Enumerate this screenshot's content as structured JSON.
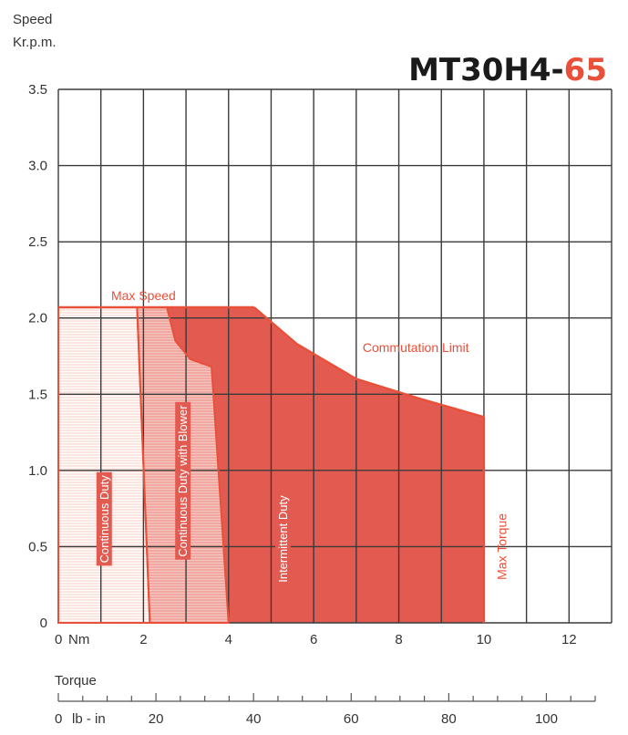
{
  "chart_data": {
    "type": "area",
    "title": {
      "model_prefix": "MT30H4-",
      "model_suffix": "65"
    },
    "ylabel": [
      "Speed",
      "Kr.p.m."
    ],
    "xlabel": "Torque",
    "x_unit_label": "Nm",
    "secondary_x_unit_label": "lb - in",
    "xlim": [
      0,
      13
    ],
    "ylim": [
      0,
      3.5
    ],
    "x_ticks": [
      0,
      2,
      4,
      6,
      8,
      10,
      12
    ],
    "y_ticks": [
      0,
      0.5,
      1.0,
      1.5,
      2.0,
      2.5,
      3.0,
      3.5
    ],
    "x_tick_labels": [
      "0",
      "2",
      "4",
      "6",
      "8",
      "10",
      "12"
    ],
    "y_tick_labels": [
      "0",
      "0.5",
      "1.0",
      "1.5",
      "2.0",
      "2.5",
      "3.0",
      "3.5"
    ],
    "secondary_x_ticks": [
      0,
      20,
      40,
      60,
      80,
      100
    ],
    "secondary_x_tick_labels": [
      "0",
      "20",
      "40",
      "60",
      "80",
      "100"
    ],
    "secondary_x_minor_step": 5,
    "secondary_x_max": 110,
    "grid": true,
    "colors": {
      "accent": "#e8503a",
      "continuous": "#e35a50",
      "blower": "#f0a8a0",
      "intermittent": "#fbe6e2",
      "grid": "#3a3a3a"
    },
    "regions": [
      {
        "name": "Continuous Duty",
        "points": [
          [
            0,
            0
          ],
          [
            0,
            2.07
          ],
          [
            1.85,
            2.07
          ],
          [
            2.15,
            0
          ]
        ]
      },
      {
        "name": "Continuous Duty with Blower",
        "points": [
          [
            1.85,
            2.07
          ],
          [
            2.55,
            2.07
          ],
          [
            2.75,
            1.85
          ],
          [
            3.1,
            1.73
          ],
          [
            3.6,
            1.68
          ],
          [
            4.0,
            0
          ],
          [
            2.15,
            0
          ]
        ]
      },
      {
        "name": "Intermittent Duty",
        "points": [
          [
            2.55,
            2.07
          ],
          [
            4.6,
            2.07
          ],
          [
            5.6,
            1.83
          ],
          [
            7.0,
            1.6
          ],
          [
            8.5,
            1.47
          ],
          [
            10,
            1.35
          ],
          [
            10,
            0
          ],
          [
            4.0,
            0
          ],
          [
            3.6,
            1.68
          ],
          [
            3.1,
            1.73
          ],
          [
            2.75,
            1.85
          ]
        ]
      }
    ],
    "boundaries": [
      {
        "name": "Max Speed",
        "points": [
          [
            0,
            2.07
          ],
          [
            4.6,
            2.07
          ]
        ]
      },
      {
        "name": "Commutation Limit",
        "points": [
          [
            4.6,
            2.07
          ],
          [
            5.6,
            1.83
          ],
          [
            7.0,
            1.6
          ],
          [
            8.5,
            1.47
          ],
          [
            10,
            1.35
          ]
        ]
      },
      {
        "name": "Max Torque",
        "points": [
          [
            10,
            1.35
          ],
          [
            10,
            0
          ]
        ]
      }
    ],
    "annotations": [
      {
        "text": "Max Speed",
        "x": 2.0,
        "y": 2.14,
        "rotate": 0
      },
      {
        "text": "Commutation Limit",
        "x": 8.4,
        "y": 1.8,
        "rotate": 0
      },
      {
        "text": "Continuous Duty",
        "x": 1.1,
        "y": 0.68,
        "rotate": -90
      },
      {
        "text": "Continuous Duty with Blower",
        "x": 2.95,
        "y": 0.93,
        "rotate": -90
      },
      {
        "text": "Intermittent Duty",
        "x": 5.3,
        "y": 0.55,
        "rotate": -90
      },
      {
        "text": "Max Torque",
        "x": 10.45,
        "y": 0.5,
        "rotate": -90
      }
    ]
  }
}
